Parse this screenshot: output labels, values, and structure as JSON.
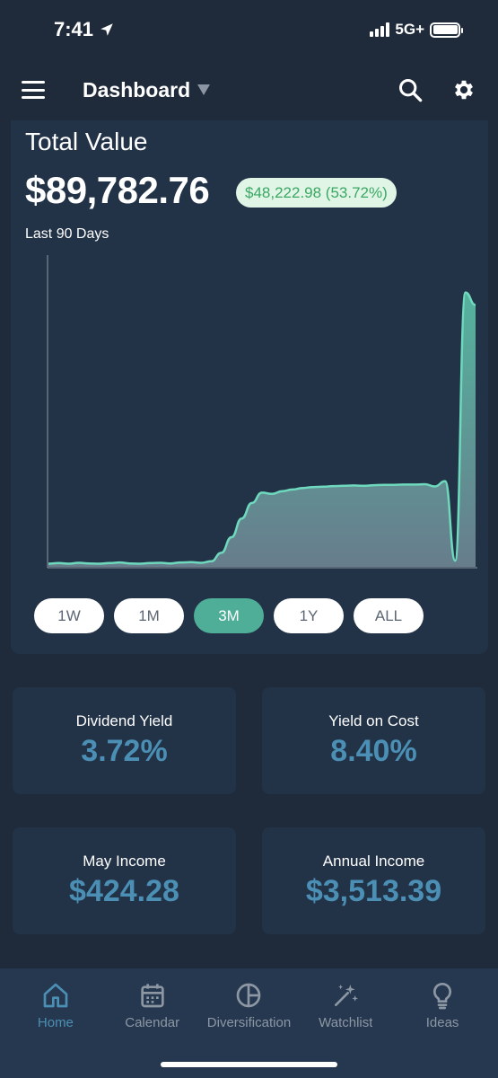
{
  "status_bar": {
    "time": "7:41",
    "network": "5G+"
  },
  "header": {
    "title": "Dashboard"
  },
  "total_value": {
    "label": "Total Value",
    "amount": "$89,782.76",
    "change": "$48,222.98 (53.72%)",
    "period": "Last 90 Days"
  },
  "chart_data": {
    "type": "area",
    "title": "",
    "xlabel": "",
    "ylabel": "",
    "grid": false,
    "series": [
      {
        "values": [
          1.0,
          1.2,
          1.0,
          1.3,
          1.1,
          1.0,
          1.2,
          1.4,
          1.1,
          1.0,
          1.2,
          1.3,
          1.1,
          1.4,
          1.5,
          1.3,
          1.8,
          4.5,
          9.5,
          15.5,
          20.5,
          23.8,
          23.4,
          24.3,
          24.8,
          25.3,
          25.6,
          25.7,
          25.9,
          26.0,
          26.1,
          26.0,
          26.2,
          26.3,
          26.3,
          26.4,
          26.4,
          26.5,
          25.8,
          27.5,
          2.0,
          88.0,
          84.0
        ]
      }
    ],
    "ylim": [
      0,
      100
    ]
  },
  "ranges": [
    {
      "label": "1W",
      "active": false
    },
    {
      "label": "1M",
      "active": false
    },
    {
      "label": "3M",
      "active": true
    },
    {
      "label": "1Y",
      "active": false
    },
    {
      "label": "ALL",
      "active": false
    }
  ],
  "stats": {
    "dividend_yield": {
      "label": "Dividend Yield",
      "value": "3.72%"
    },
    "yield_on_cost": {
      "label": "Yield on Cost",
      "value": "8.40%"
    },
    "month_income": {
      "label": "May Income",
      "value": "$424.28"
    },
    "annual_income": {
      "label": "Annual Income",
      "value": "$3,513.39"
    }
  },
  "nav": {
    "items": [
      {
        "label": "Home",
        "icon": "home-icon",
        "active": true
      },
      {
        "label": "Calendar",
        "icon": "calendar-icon",
        "active": false
      },
      {
        "label": "Diversification",
        "icon": "pie-chart-icon",
        "active": false
      },
      {
        "label": "Watchlist",
        "icon": "sparkles-icon",
        "active": false
      },
      {
        "label": "Ideas",
        "icon": "lightbulb-icon",
        "active": false
      }
    ]
  },
  "colors": {
    "background": "#1f2b3a",
    "card": "#223247",
    "accent": "#4fae98",
    "stat_value": "#4b8fb4",
    "positive": "#3aa862",
    "chart_line": "#6ed9bd"
  }
}
